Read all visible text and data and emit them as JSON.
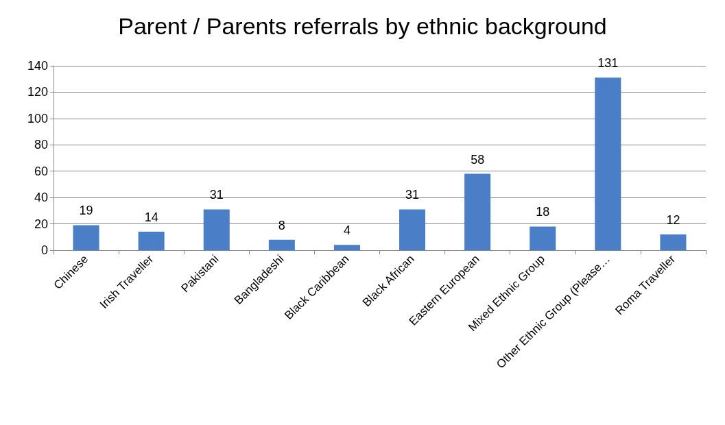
{
  "chart_data": {
    "type": "bar",
    "title": "Parent / Parents referrals by ethnic background",
    "categories": [
      "Chinese",
      "Irish Traveller",
      "Pakistani",
      "Bangladeshi",
      "Black Caribbean",
      "Black African",
      "Eastern European",
      "Mixed Ethnic Group",
      "Other Ethnic Group (Please…",
      "Roma Traveller"
    ],
    "values": [
      19,
      14,
      31,
      8,
      4,
      31,
      58,
      18,
      131,
      12
    ],
    "color": "#4a7ec6",
    "ylim": [
      0,
      140
    ],
    "yticks": [
      0,
      20,
      40,
      60,
      80,
      100,
      120,
      140
    ],
    "grid": "y",
    "data_labels": true
  }
}
